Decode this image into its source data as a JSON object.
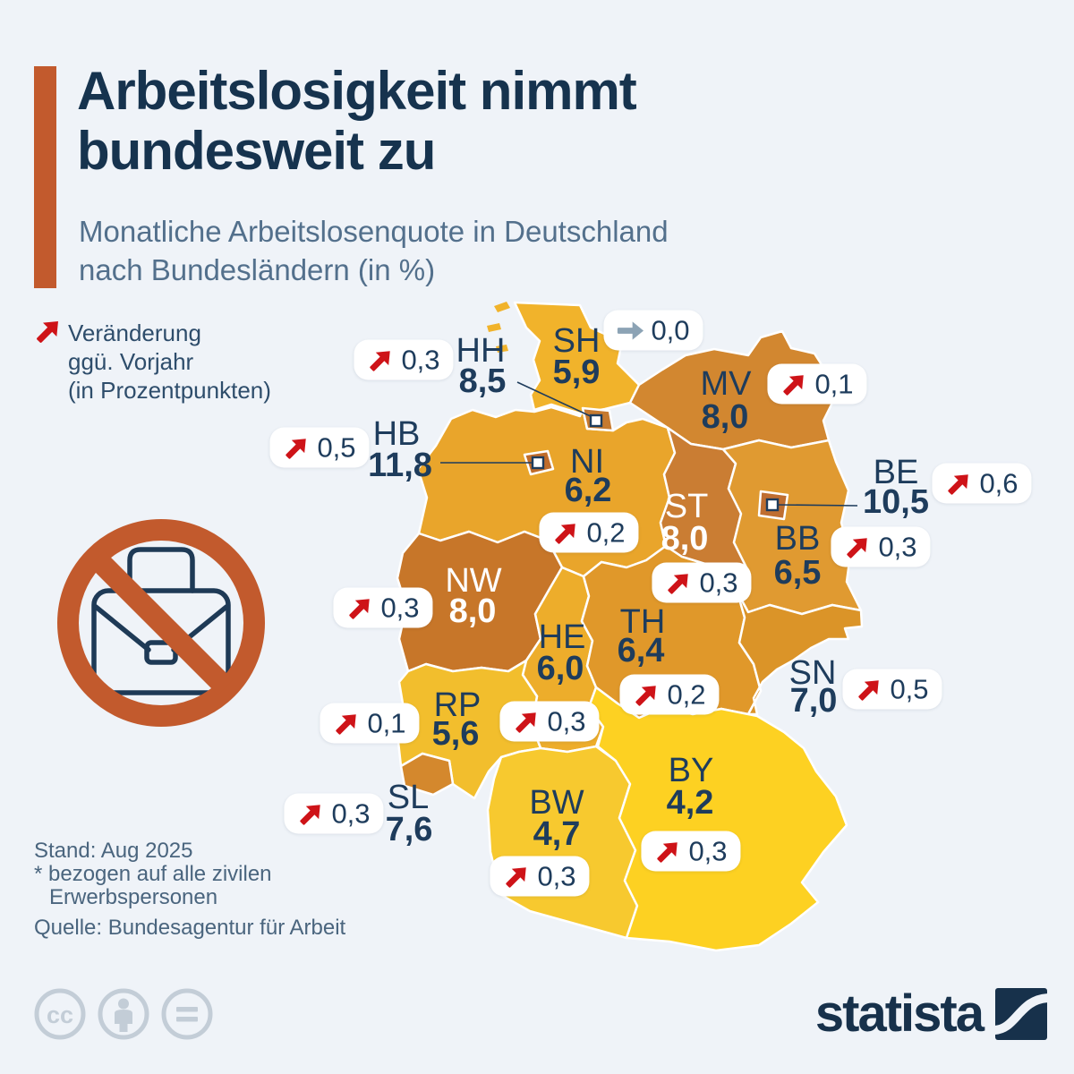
{
  "header": {
    "title_line1": "Arbeitslosigkeit nimmt",
    "title_line2": "bundesweit zu",
    "subtitle_line1": "Monatliche Arbeitslosenquote in Deutschland",
    "subtitle_line2": "nach Bundesländern (in %)"
  },
  "legend": {
    "line1": "Veränderung",
    "line2": "ggü. Vorjahr",
    "line3": "(in Prozentpunkten)"
  },
  "footer": {
    "status": "Stand: Aug 2025",
    "note_line1": "* bezogen auf alle zivilen",
    "note_line2": "Erwerbspersonen",
    "source": "Quelle: Bundesagentur für Arbeit"
  },
  "branding": {
    "logo_text": "statista"
  },
  "colors": {
    "background": "#EFF3F8",
    "accent_bar": "#C25A2D",
    "title": "#16334E",
    "subtitle": "#53708C",
    "navy": "#1E3C5C",
    "red_arrow": "#CE1318",
    "flat_arrow": "#8CA3B5",
    "badge_bg": "#FFFFFF",
    "map_border": "#FFFFFF",
    "prohibition": "#C25A2D",
    "cc_gray": "#C3CDD7",
    "logo_navy": "#17314B"
  },
  "chart_data": {
    "type": "choropleth",
    "region": "Deutschland",
    "title": "Monatliche Arbeitslosenquote in Deutschland nach Bundesländern (in %)",
    "unit": "%",
    "change_note": "Veränderung ggü. Vorjahr (in Prozentpunkten)",
    "status": "Stand: Aug 2025",
    "source": "Bundesagentur für Arbeit",
    "states": [
      {
        "code": "SH",
        "value": "5,9",
        "change": "0,0",
        "trend": "flat",
        "color": "#F1B32B"
      },
      {
        "code": "HH",
        "value": "8,5",
        "change": "0,3",
        "trend": "up",
        "color": "#C67A2F"
      },
      {
        "code": "MV",
        "value": "8,0",
        "change": "0,1",
        "trend": "up",
        "color": "#D28730"
      },
      {
        "code": "HB",
        "value": "11,8",
        "change": "0,5",
        "trend": "up",
        "color": "#C06C2B"
      },
      {
        "code": "NI",
        "value": "6,2",
        "change": "0,2",
        "trend": "up",
        "color": "#E9A52B"
      },
      {
        "code": "BE",
        "value": "10,5",
        "change": "0,6",
        "trend": "up",
        "color": "#BF6E30"
      },
      {
        "code": "ST",
        "value": "8,0",
        "change": "0,3",
        "trend": "up",
        "color": "#CA7D33"
      },
      {
        "code": "BB",
        "value": "6,5",
        "change": "0,3",
        "trend": "up",
        "color": "#E09A31"
      },
      {
        "code": "NW",
        "value": "8,0",
        "change": "0,3",
        "trend": "up",
        "color": "#C77629"
      },
      {
        "code": "TH",
        "value": "6,4",
        "change": "0,2",
        "trend": "up",
        "color": "#E0982A"
      },
      {
        "code": "HE",
        "value": "6,0",
        "change": "0,3",
        "trend": "up",
        "color": "#EDAD2B"
      },
      {
        "code": "SN",
        "value": "7,0",
        "change": "0,5",
        "trend": "up",
        "color": "#DB9428"
      },
      {
        "code": "RP",
        "value": "5,6",
        "change": "0,1",
        "trend": "up",
        "color": "#F2BE2D"
      },
      {
        "code": "SL",
        "value": "7,6",
        "change": "0,3",
        "trend": "up",
        "color": "#D4882D"
      },
      {
        "code": "BW",
        "value": "4,7",
        "change": "0,3",
        "trend": "up",
        "color": "#F7C92F"
      },
      {
        "code": "BY",
        "value": "4,2",
        "change": "0,3",
        "trend": "up",
        "color": "#FDD122"
      }
    ]
  }
}
